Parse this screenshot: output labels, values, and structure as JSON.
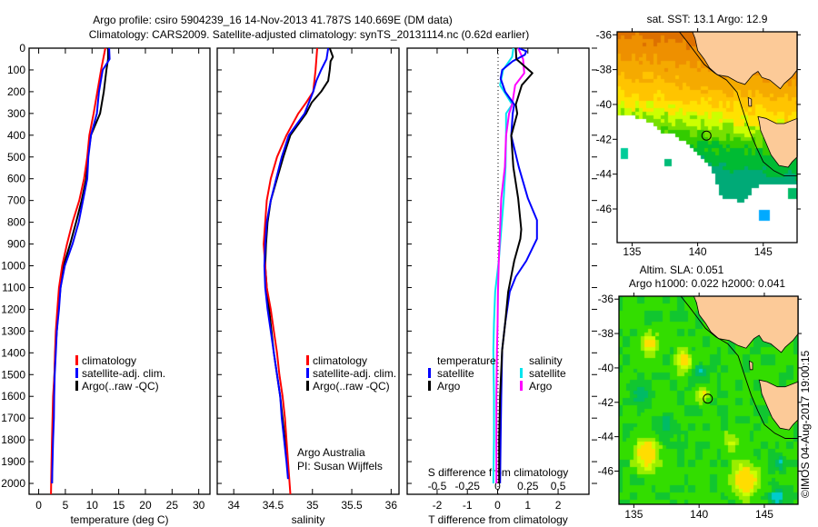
{
  "title": {
    "line1": "Argo profile: csiro 5904239_16 14-Nov-2013 41.787S 140.669E (DM data)",
    "line2": "Climatology: CARS2009. Satellite-adjusted climatology: synTS_20131114.nc (0.62d earlier)"
  },
  "colors": {
    "climatology": "#ff0000",
    "satellite": "#0000ff",
    "argo": "#000000",
    "s_satellite": "#00e5ee",
    "s_argo": "#ff00ff"
  },
  "depth_axis": {
    "ticks": [
      0,
      100,
      200,
      300,
      400,
      500,
      600,
      700,
      800,
      900,
      1000,
      1100,
      1200,
      1300,
      1400,
      1500,
      1600,
      1700,
      1800,
      1900,
      2000
    ],
    "range": [
      0,
      2050
    ],
    "inverted": true
  },
  "legend": {
    "climatology": "climatology",
    "satellite": "satellite-adj. clim.",
    "argo": "Argo(..raw -QC)"
  },
  "credit": {
    "line1": "Argo Australia",
    "line2": "PI: Susan Wijffels"
  },
  "diff_legend": {
    "temperature": "temperature",
    "salinity": "salinity",
    "satellite": "satellite",
    "argo": "Argo"
  },
  "chart_data": [
    {
      "type": "line",
      "xlabel": "temperature (deg C)",
      "xlim": [
        -1.8,
        32.1
      ],
      "xticks": [
        0,
        5,
        10,
        15,
        20,
        25,
        30
      ],
      "series": [
        {
          "name": "climatology",
          "points": [
            [
              0,
              12.5
            ],
            [
              100,
              11.7
            ],
            [
              200,
              11
            ],
            [
              300,
              10.3
            ],
            [
              400,
              9.5
            ],
            [
              500,
              9.1
            ],
            [
              600,
              8.5
            ],
            [
              700,
              7.6
            ],
            [
              800,
              6.35
            ],
            [
              900,
              5.3
            ],
            [
              1000,
              4.4
            ],
            [
              1100,
              3.8
            ],
            [
              1200,
              3.5
            ],
            [
              1300,
              3.2
            ],
            [
              1400,
              3.05
            ],
            [
              1500,
              2.95
            ],
            [
              1600,
              2.7
            ],
            [
              1800,
              2.5
            ],
            [
              1900,
              2.4
            ],
            [
              2050,
              2.3
            ]
          ]
        },
        {
          "name": "satellite-adj. clim.",
          "points": [
            [
              0,
              13.2
            ],
            [
              50,
              13.3
            ],
            [
              100,
              12
            ],
            [
              200,
              11.3
            ],
            [
              300,
              10.9
            ],
            [
              400,
              9.8
            ],
            [
              500,
              9.3
            ],
            [
              600,
              9.1
            ],
            [
              700,
              8.3
            ],
            [
              800,
              7.5
            ],
            [
              900,
              6.35
            ],
            [
              1000,
              4.9
            ],
            [
              1100,
              4.1
            ],
            [
              1200,
              3.8
            ],
            [
              1300,
              3.4
            ],
            [
              1400,
              3.2
            ],
            [
              1500,
              3.0
            ],
            [
              1600,
              2.9
            ],
            [
              1700,
              2.85
            ],
            [
              1800,
              2.7
            ],
            [
              1900,
              2.6
            ],
            [
              2000,
              2.5
            ]
          ]
        },
        {
          "name": "Argo(..raw -QC)",
          "points": [
            [
              0,
              13
            ],
            [
              50,
              13
            ],
            [
              100,
              12.7
            ],
            [
              200,
              12.2
            ],
            [
              300,
              11.5
            ],
            [
              400,
              9.8
            ],
            [
              500,
              9.2
            ],
            [
              600,
              8.9
            ],
            [
              700,
              8.05
            ],
            [
              800,
              7.0
            ],
            [
              900,
              5.9
            ],
            [
              1000,
              4.65
            ],
            [
              1100,
              4.1
            ],
            [
              1200,
              3.7
            ],
            [
              1300,
              3.4
            ],
            [
              1400,
              3.1
            ],
            [
              1500,
              2.95
            ],
            [
              1600,
              2.8
            ],
            [
              1800,
              2.6
            ],
            [
              2000,
              2.5
            ]
          ]
        }
      ]
    },
    {
      "type": "line",
      "xlabel": "salinity",
      "xlim": [
        33.79,
        36.1
      ],
      "xticks": [
        34,
        34.5,
        35,
        35.5,
        36
      ],
      "series": [
        {
          "name": "climatology",
          "points": [
            [
              0,
              35.06
            ],
            [
              100,
              35.04
            ],
            [
              200,
              35.01
            ],
            [
              250,
              34.92
            ],
            [
              300,
              34.82
            ],
            [
              400,
              34.67
            ],
            [
              500,
              34.55
            ],
            [
              600,
              34.47
            ],
            [
              700,
              34.42
            ],
            [
              800,
              34.4
            ],
            [
              900,
              34.38
            ],
            [
              1000,
              34.4
            ],
            [
              1100,
              34.42
            ],
            [
              1200,
              34.47
            ],
            [
              1300,
              34.51
            ],
            [
              1400,
              34.55
            ],
            [
              1500,
              34.58
            ],
            [
              1600,
              34.62
            ],
            [
              1700,
              34.65
            ],
            [
              1800,
              34.67
            ],
            [
              1900,
              34.69
            ],
            [
              2050,
              34.72
            ]
          ]
        },
        {
          "name": "satellite-adj. clim.",
          "points": [
            [
              0,
              35.2
            ],
            [
              50,
              35.18
            ],
            [
              100,
              35.11
            ],
            [
              150,
              35.05
            ],
            [
              200,
              35.01
            ],
            [
              300,
              34.9
            ],
            [
              400,
              34.7
            ],
            [
              500,
              34.61
            ],
            [
              600,
              34.54
            ],
            [
              700,
              34.47
            ],
            [
              800,
              34.42
            ],
            [
              900,
              34.4
            ],
            [
              1000,
              34.39
            ],
            [
              1100,
              34.4
            ],
            [
              1200,
              34.43
            ],
            [
              1300,
              34.47
            ],
            [
              1400,
              34.51
            ],
            [
              1500,
              34.55
            ],
            [
              1600,
              34.59
            ],
            [
              1700,
              34.61
            ],
            [
              1800,
              34.64
            ],
            [
              1900,
              34.67
            ],
            [
              1980,
              34.69
            ]
          ]
        },
        {
          "name": "Argo(..raw -QC)",
          "points": [
            [
              0,
              35.22
            ],
            [
              40,
              35.26
            ],
            [
              60,
              35.23
            ],
            [
              100,
              35.22
            ],
            [
              150,
              35.2
            ],
            [
              200,
              35.11
            ],
            [
              250,
              34.99
            ],
            [
              300,
              34.92
            ],
            [
              400,
              34.72
            ],
            [
              500,
              34.63
            ],
            [
              600,
              34.55
            ],
            [
              700,
              34.47
            ],
            [
              800,
              34.43
            ],
            [
              900,
              34.41
            ],
            [
              1000,
              34.4
            ],
            [
              1100,
              34.42
            ],
            [
              1200,
              34.45
            ],
            [
              1300,
              34.48
            ],
            [
              1400,
              34.51
            ],
            [
              1500,
              34.55
            ],
            [
              1600,
              34.59
            ],
            [
              1700,
              34.62
            ],
            [
              1800,
              34.65
            ],
            [
              1900,
              34.68
            ],
            [
              1950,
              34.69
            ]
          ]
        }
      ]
    },
    {
      "type": "line",
      "xlabel": "T difference from climatology",
      "xlim": [
        -2.99,
        3.02
      ],
      "xticks": [
        -2,
        -1,
        0,
        1,
        2
      ],
      "s_label": "S difference from climatology",
      "s_xticks": [
        "-0.5",
        "-0.25",
        "0",
        "0.25",
        "0.5"
      ],
      "s_scale": 0.25,
      "series": [
        {
          "name": "temperature satellite",
          "var": "T",
          "points": [
            [
              0,
              0.7
            ],
            [
              14,
              0.95
            ],
            [
              30,
              0.9
            ],
            [
              60,
              0.5
            ],
            [
              100,
              0.15
            ],
            [
              140,
              0.1
            ],
            [
              200,
              0.25
            ],
            [
              259,
              0.55
            ],
            [
              300,
              0.5
            ],
            [
              402,
              0.45
            ],
            [
              546,
              0.7
            ],
            [
              690,
              1.0
            ],
            [
              790,
              1.3
            ],
            [
              876,
              1.3
            ],
            [
              977,
              0.95
            ],
            [
              1050,
              0.6
            ],
            [
              1120,
              0.4
            ],
            [
              1264,
              0.25
            ],
            [
              1387,
              0.15
            ],
            [
              1600,
              0.12
            ],
            [
              1800,
              0.1
            ],
            [
              2000,
              0.08
            ]
          ]
        },
        {
          "name": "temperature Argo",
          "var": "T",
          "points": [
            [
              0,
              0.6
            ],
            [
              50,
              0.62
            ],
            [
              115,
              1.15
            ],
            [
              170,
              0.8
            ],
            [
              259,
              0.6
            ],
            [
              300,
              0.65
            ],
            [
              402,
              0.45
            ],
            [
              546,
              0.52
            ],
            [
              690,
              0.68
            ],
            [
              833,
              0.78
            ],
            [
              876,
              0.75
            ],
            [
              977,
              0.55
            ],
            [
              1120,
              0.35
            ],
            [
              1264,
              0.25
            ],
            [
              1387,
              0.15
            ],
            [
              1600,
              0.08
            ],
            [
              1800,
              0.05
            ],
            [
              2000,
              0.05
            ]
          ]
        },
        {
          "name": "salinity satellite",
          "var": "S",
          "points": [
            [
              0,
              0.13
            ],
            [
              40,
              0.12
            ],
            [
              100,
              0.045
            ],
            [
              170,
              0.02
            ],
            [
              259,
              0.12
            ],
            [
              300,
              0.07
            ],
            [
              402,
              0.07
            ],
            [
              546,
              0.065
            ],
            [
              690,
              0.05
            ],
            [
              833,
              0.03
            ],
            [
              976,
              0.01
            ],
            [
              1120,
              -0.02
            ],
            [
              1264,
              -0.03
            ],
            [
              1387,
              -0.035
            ],
            [
              1600,
              -0.03
            ],
            [
              1800,
              -0.03
            ],
            [
              2000,
              -0.035
            ]
          ]
        },
        {
          "name": "salinity Argo",
          "var": "S",
          "points": [
            [
              0,
              0.17
            ],
            [
              50,
              0.21
            ],
            [
              115,
              0.22
            ],
            [
              170,
              0.145
            ],
            [
              259,
              0.12
            ],
            [
              300,
              0.095
            ],
            [
              402,
              0.07
            ],
            [
              546,
              0.06
            ],
            [
              690,
              0.03
            ],
            [
              833,
              0.02
            ],
            [
              976,
              0.01
            ],
            [
              1120,
              0.003
            ],
            [
              1264,
              0
            ],
            [
              1387,
              -0.005
            ],
            [
              1600,
              -0.01
            ],
            [
              1800,
              -0.01
            ],
            [
              2000,
              -0.01
            ]
          ]
        }
      ]
    }
  ],
  "maps": {
    "lon_ticks": [
      135,
      140,
      145
    ],
    "lat_ticks": [
      -36,
      -38,
      -40,
      -42,
      -44,
      -46
    ],
    "lon_range": [
      133.86,
      147.58
    ],
    "lat_range": [
      -47.93,
      -35.83
    ],
    "argo_position": {
      "lon": 140.669,
      "lat": -41.787
    },
    "sst": {
      "title": "sat. SST: 13.1 Argo: 12.9"
    },
    "sla": {
      "title1": "Altim. SLA: 0.051",
      "title2": "Argo h1000: 0.022 h2000: 0.041"
    }
  },
  "footer": "©IMOS 04-Aug-2017 19:00:15"
}
